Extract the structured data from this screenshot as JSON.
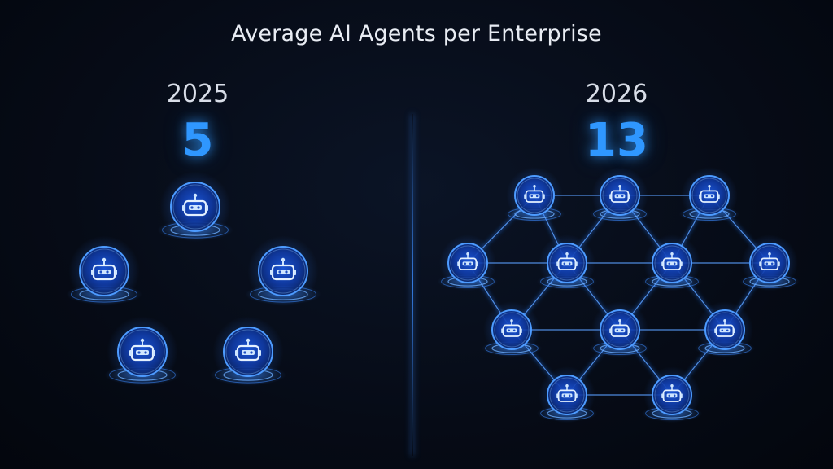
{
  "title": "Average AI Agents per Enterprise",
  "left_panel": {
    "year": "2025",
    "count": "5"
  },
  "right_panel": {
    "year": "2026",
    "count": "13"
  },
  "colors": {
    "accent": "#2f97ff",
    "glow": "#1f6fff",
    "background": "#060b16"
  },
  "icon": "robot-icon"
}
